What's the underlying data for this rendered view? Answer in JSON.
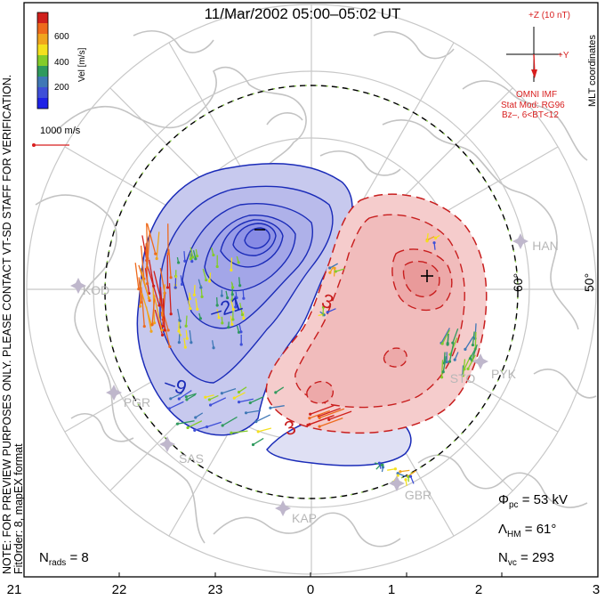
{
  "title": "11/Mar/2002 05:00–05:02 UT",
  "note_lines": [
    "NOTE: FOR PREVIEW PURPOSES ONLY. PLEASE CONTACT VT-SD STAFF FOR VERIFICATION.",
    "FitOrder: 8, mapEX format"
  ],
  "coord_label": "MLT coordinates",
  "colorbar": {
    "label": "Vel [m/s]",
    "ticks": [
      "600",
      "400",
      "200"
    ],
    "colors": [
      "#d0201c",
      "#ee6a1c",
      "#f0a51e",
      "#f4e01e",
      "#84cc2a",
      "#2f9a5e",
      "#3f78b6",
      "#3e4fd8",
      "#1e22e6"
    ]
  },
  "velocity_scale": "1000 m/s",
  "imf": {
    "z_label": "+Z (10 nT)",
    "y_label": "+Y",
    "source": "OMNI IMF",
    "model": "Stat Mod: RG96",
    "bin": "Bz–, 6<BT<12"
  },
  "lat_labels": [
    "60°",
    "50°"
  ],
  "contour_labels": [
    "–21",
    "–9",
    "3",
    "3"
  ],
  "stations": [
    "KOD",
    "PGR",
    "SAS",
    "KAP",
    "GBR",
    "STO",
    "PYK",
    "HAN"
  ],
  "stats": {
    "phi_pc": "Φpc = 53 kV",
    "lambda_hm": "ΛHM = 61°",
    "n_vc": "Nvc = 293",
    "n_rads": "Nrads = 8"
  },
  "mlt_ticks": [
    "21",
    "22",
    "23",
    "0",
    "1",
    "2",
    "3"
  ],
  "colors": {
    "negative_fill": "#c7c9ee",
    "negative_core": "#8f93e6",
    "negative_line": "#1a2bb8",
    "positive_fill": "#f5cccc",
    "positive_line": "#c81e1e",
    "continent": "#c3c3c3",
    "grid": "#c8c8c8"
  }
}
